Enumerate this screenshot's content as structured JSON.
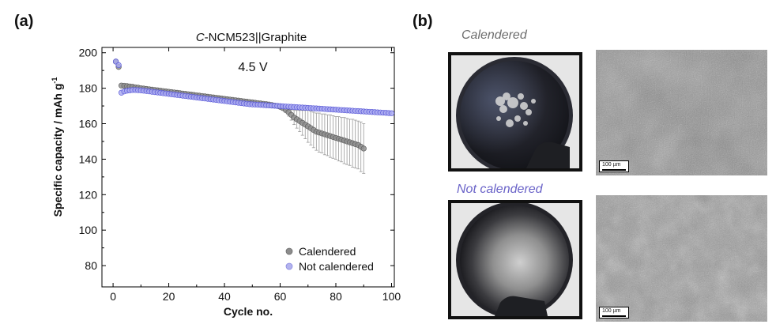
{
  "panels": {
    "a": "(a)",
    "b": "(b)"
  },
  "chart_data": {
    "type": "scatter",
    "title_prefix": "C",
    "title_rest": "-NCM523||Graphite",
    "annotation": "4.5 V",
    "xlabel": "Cycle no.",
    "ylabel_main": "Specific capacity / mAh g",
    "ylabel_sup": "-1",
    "xlim": [
      -4,
      101
    ],
    "ylim": [
      68,
      203
    ],
    "xticks": [
      0,
      20,
      40,
      60,
      80,
      100
    ],
    "yticks": [
      80,
      100,
      120,
      140,
      160,
      180,
      200
    ],
    "legend_position": "bottom-right",
    "series": [
      {
        "name": "Calendered",
        "color": "#8c8c8c",
        "x": [
          1,
          2,
          3,
          4,
          5,
          6,
          7,
          8,
          9,
          10,
          11,
          12,
          13,
          14,
          15,
          16,
          17,
          18,
          19,
          20,
          21,
          22,
          23,
          24,
          25,
          26,
          27,
          28,
          29,
          30,
          31,
          32,
          33,
          34,
          35,
          36,
          37,
          38,
          39,
          40,
          41,
          42,
          43,
          44,
          45,
          46,
          47,
          48,
          49,
          50,
          51,
          52,
          53,
          54,
          55,
          56,
          57,
          58,
          59,
          60,
          61,
          62,
          63,
          64,
          65,
          66,
          67,
          68,
          69,
          70,
          71,
          72,
          73,
          74,
          75,
          76,
          77,
          78,
          79,
          80,
          81,
          82,
          83,
          84,
          85,
          86,
          87,
          88,
          89,
          90
        ],
        "y": [
          195,
          192,
          181.5,
          181.4,
          181.2,
          181,
          180.8,
          180.5,
          180.3,
          180,
          179.8,
          179.6,
          179.4,
          179.2,
          179,
          178.8,
          178.6,
          178.4,
          178.2,
          178,
          177.8,
          177.6,
          177.4,
          177.2,
          177,
          176.8,
          176.6,
          176.4,
          176.2,
          176,
          175.8,
          175.6,
          175.4,
          175.2,
          175,
          174.8,
          174.6,
          174.4,
          174.2,
          174,
          173.8,
          173.6,
          173.4,
          173.2,
          173,
          172.8,
          172.6,
          172.4,
          172.2,
          172,
          171.8,
          171.6,
          171.4,
          171.2,
          171,
          170.8,
          170.5,
          170.2,
          170,
          169.5,
          168.8,
          167.8,
          166.5,
          165,
          163.5,
          162.5,
          161.5,
          160.5,
          159.5,
          158.5,
          157.5,
          156.5,
          155.5,
          155,
          154.5,
          154,
          153.5,
          153,
          152.5,
          152,
          151.5,
          151,
          150.5,
          150,
          149.5,
          149,
          148.5,
          148,
          147,
          146
        ],
        "error": [
          0,
          0,
          0,
          0,
          0,
          0,
          0,
          0,
          0,
          0,
          0,
          0,
          0,
          0,
          0,
          0,
          0,
          0,
          0,
          0,
          0,
          0,
          0,
          0,
          0,
          0,
          0,
          0,
          0,
          0,
          0,
          0,
          0,
          0,
          0,
          0,
          0,
          0,
          0,
          0,
          0,
          0,
          0,
          0,
          0,
          0,
          0,
          0,
          0,
          0,
          0,
          0,
          0,
          0,
          0,
          0,
          0,
          0,
          0,
          0,
          0.8,
          1.5,
          2.2,
          3,
          4,
          5,
          6,
          7,
          8,
          9,
          9.5,
          10,
          10.5,
          11,
          11,
          11.5,
          11.5,
          12,
          12,
          12,
          12.5,
          12.5,
          13,
          13,
          13,
          13.5,
          13.5,
          13.5,
          14,
          14
        ]
      },
      {
        "name": "Not calendered",
        "color": "#6f6fe0",
        "x": [
          1,
          2,
          3,
          4,
          5,
          6,
          7,
          8,
          9,
          10,
          11,
          12,
          13,
          14,
          15,
          16,
          17,
          18,
          19,
          20,
          21,
          22,
          23,
          24,
          25,
          26,
          27,
          28,
          29,
          30,
          31,
          32,
          33,
          34,
          35,
          36,
          37,
          38,
          39,
          40,
          41,
          42,
          43,
          44,
          45,
          46,
          47,
          48,
          49,
          50,
          51,
          52,
          53,
          54,
          55,
          56,
          57,
          58,
          59,
          60,
          61,
          62,
          63,
          64,
          65,
          66,
          67,
          68,
          69,
          70,
          71,
          72,
          73,
          74,
          75,
          76,
          77,
          78,
          79,
          80,
          81,
          82,
          83,
          84,
          85,
          86,
          87,
          88,
          89,
          90,
          91,
          92,
          93,
          94,
          95,
          96,
          97,
          98,
          99,
          100
        ],
        "y": [
          195,
          193,
          177.5,
          178.2,
          178.6,
          178.8,
          179,
          179,
          178.9,
          178.8,
          178.6,
          178.4,
          178.2,
          178,
          177.8,
          177.6,
          177.4,
          177.2,
          177,
          176.8,
          176.6,
          176.4,
          176.2,
          176,
          175.8,
          175.6,
          175.4,
          175.2,
          175,
          174.8,
          174.6,
          174.4,
          174.2,
          174,
          173.8,
          173.6,
          173.4,
          173.2,
          173,
          172.8,
          172.6,
          172.4,
          172.2,
          172,
          171.8,
          171.6,
          171.4,
          171.2,
          171,
          170.9,
          170.8,
          170.7,
          170.6,
          170.5,
          170.4,
          170.3,
          170.2,
          170.1,
          170,
          169.9,
          169.8,
          169.7,
          169.6,
          169.5,
          169.4,
          169.3,
          169.2,
          169.1,
          169,
          168.9,
          168.8,
          168.7,
          168.6,
          168.5,
          168.4,
          168.3,
          168.2,
          168.1,
          168,
          167.9,
          167.8,
          167.7,
          167.6,
          167.5,
          167.4,
          167.3,
          167.2,
          167.1,
          167,
          166.9,
          166.8,
          166.7,
          166.6,
          166.5,
          166.4,
          166.3,
          166.2,
          166.1,
          166,
          165.9
        ]
      }
    ]
  },
  "panel_b": {
    "caption_calendered": "Calendered",
    "caption_not_calendered": "Not calendered",
    "scale_top": "100 µm",
    "scale_bottom": "100 µm"
  }
}
